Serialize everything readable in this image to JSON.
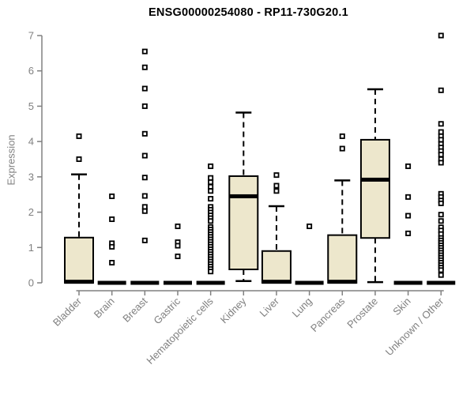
{
  "title": "ENSG00000254080 - RP11-730G20.1",
  "chart_data": {
    "type": "boxplot",
    "title": "ENSG00000254080 - RP11-730G20.1",
    "xlabel": "",
    "ylabel": "Expression",
    "ylim": [
      0,
      7
    ],
    "yticks": [
      0,
      1,
      2,
      3,
      4,
      5,
      6,
      7
    ],
    "grid": false,
    "legend": "none",
    "colors": {
      "box_fill": "#EDE7CC",
      "box_stroke": "#000000",
      "median": "#000000",
      "whisker": "#000000",
      "axis": "#808080",
      "tick_label": "#808080",
      "title": "#000000",
      "background": "#ffffff"
    },
    "categories": [
      "Bladder",
      "Brain",
      "Breast",
      "Gastric",
      "Hematopoietic cells",
      "Kidney",
      "Liver",
      "Lung",
      "Pancreas",
      "Prostate",
      "Skin",
      "Unknown / Other"
    ],
    "boxes": [
      {
        "label": "Bladder",
        "q1": 0,
        "median": 0.03,
        "q3": 1.28,
        "whisker_low": 0,
        "whisker_high": 3.07,
        "outliers": [
          4.15,
          3.5
        ]
      },
      {
        "label": "Brain",
        "q1": 0,
        "median": 0,
        "q3": 0,
        "whisker_low": 0,
        "whisker_high": 0,
        "outliers": [
          2.45,
          1.8,
          1.12,
          1.02,
          0.57
        ]
      },
      {
        "label": "Breast",
        "q1": 0,
        "median": 0,
        "q3": 0,
        "whisker_low": 0,
        "whisker_high": 0,
        "outliers": [
          6.55,
          6.1,
          5.5,
          5.0,
          4.22,
          3.6,
          2.98,
          2.46,
          2.15,
          2.03,
          1.2
        ]
      },
      {
        "label": "Gastric",
        "q1": 0,
        "median": 0,
        "q3": 0,
        "whisker_low": 0,
        "whisker_high": 0,
        "outliers": [
          1.6,
          1.15,
          1.05,
          0.75
        ]
      },
      {
        "label": "Hematopoietic cells",
        "q1": 0,
        "median": 0,
        "q3": 0,
        "whisker_low": 0,
        "whisker_high": 0,
        "outliers": [
          3.3,
          2.97,
          2.85,
          2.72,
          2.6,
          2.38,
          2.15,
          2.07,
          1.99,
          1.91,
          1.83,
          1.75,
          1.58,
          1.51,
          1.44,
          1.37,
          1.3,
          1.23,
          1.16,
          1.09,
          1.02,
          0.95,
          0.88,
          0.81,
          0.74,
          0.67,
          0.6,
          0.53,
          0.46,
          0.39,
          0.32
        ]
      },
      {
        "label": "Kidney",
        "q1": 0.38,
        "median": 2.45,
        "q3": 3.02,
        "whisker_low": 0.05,
        "whisker_high": 4.82,
        "outliers": []
      },
      {
        "label": "Liver",
        "q1": 0,
        "median": 0.03,
        "q3": 0.9,
        "whisker_low": 0,
        "whisker_high": 2.17,
        "outliers": [
          3.05,
          2.75,
          2.6
        ]
      },
      {
        "label": "Lung",
        "q1": 0,
        "median": 0,
        "q3": 0,
        "whisker_low": 0,
        "whisker_high": 0,
        "outliers": [
          1.6
        ]
      },
      {
        "label": "Pancreas",
        "q1": 0,
        "median": 0.03,
        "q3": 1.35,
        "whisker_low": 0,
        "whisker_high": 2.9,
        "outliers": [
          4.15,
          3.8
        ]
      },
      {
        "label": "Prostate",
        "q1": 1.27,
        "median": 2.92,
        "q3": 4.05,
        "whisker_low": 0.02,
        "whisker_high": 5.48,
        "outliers": []
      },
      {
        "label": "Skin",
        "q1": 0,
        "median": 0,
        "q3": 0,
        "whisker_low": 0,
        "whisker_high": 0,
        "outliers": [
          3.3,
          2.43,
          1.9,
          1.4
        ]
      },
      {
        "label": "Unknown / Other",
        "q1": 0,
        "median": 0,
        "q3": 0,
        "whisker_low": 0,
        "whisker_high": 0,
        "outliers": [
          7.0,
          5.45,
          4.5,
          4.27,
          4.15,
          4.05,
          3.93,
          3.83,
          3.73,
          3.63,
          3.5,
          3.4,
          2.52,
          2.43,
          2.33,
          2.25,
          1.93,
          1.75,
          1.57,
          1.48,
          1.38,
          1.27,
          1.2,
          1.13,
          1.06,
          0.99,
          0.92,
          0.85,
          0.78,
          0.71,
          0.64,
          0.57,
          0.5,
          0.43,
          0.36,
          0.22
        ]
      }
    ]
  }
}
